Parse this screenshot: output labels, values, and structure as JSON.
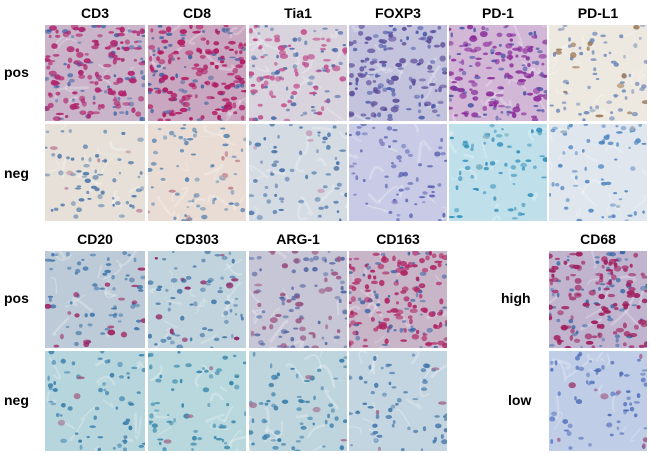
{
  "top_panel": {
    "columns": [
      "CD3",
      "CD8",
      "Tia1",
      "FOXP3",
      "PD-1",
      "PD-L1"
    ],
    "rows": [
      "pos",
      "neg"
    ]
  },
  "bottom_panel": {
    "columns": [
      "CD20",
      "CD303",
      "ARG-1",
      "CD163"
    ],
    "rows": [
      "pos",
      "neg"
    ]
  },
  "cd68_panel": {
    "column": "CD68",
    "rows": [
      "high",
      "low"
    ]
  },
  "tiles": [
    {
      "id": "cd3-pos",
      "bg": "#c9b4c9",
      "stain": "#b0256e",
      "cell": "#3d62a8",
      "density": 0.85
    },
    {
      "id": "cd8-pos",
      "bg": "#c9a7c0",
      "stain": "#b01a62",
      "cell": "#3a5ea0",
      "density": 0.9
    },
    {
      "id": "tia1-pos",
      "bg": "#d9d3dd",
      "stain": "#c04a8a",
      "cell": "#4a6aa8",
      "density": 0.45
    },
    {
      "id": "foxp3-pos",
      "bg": "#c3c3dd",
      "stain": "#5d4d9a",
      "cell": "#4a5aa8",
      "density": 0.55
    },
    {
      "id": "pd1-pos",
      "bg": "#d2b7d7",
      "stain": "#8a2d9a",
      "cell": "#4a55a8",
      "density": 0.75
    },
    {
      "id": "pdl1-pos",
      "bg": "#ede8e0",
      "stain": "#9c7a5a",
      "cell": "#6a86b8",
      "density": 0.1
    },
    {
      "id": "cd3-neg",
      "bg": "#e6e0d8",
      "stain": "#c08aa0",
      "cell": "#4a75a8",
      "density": 0.04
    },
    {
      "id": "cd8-neg",
      "bg": "#e8dcd4",
      "stain": "#c08090",
      "cell": "#5080b0",
      "density": 0.06
    },
    {
      "id": "tia1-neg",
      "bg": "#d4dbe3",
      "stain": "#c090b0",
      "cell": "#3f6ca5",
      "density": 0.03
    },
    {
      "id": "foxp3-neg",
      "bg": "#c9cbe6",
      "stain": "#8a80c0",
      "cell": "#5560b0",
      "density": 0.02
    },
    {
      "id": "pd1-neg",
      "bg": "#bfe0ea",
      "stain": "#80b0c0",
      "cell": "#2a8ab8",
      "density": 0.02
    },
    {
      "id": "pdl1-neg",
      "bg": "#dfe6ee",
      "stain": "#a0b0c0",
      "cell": "#4a82c0",
      "density": 0.02
    },
    {
      "id": "cd20-pos",
      "bg": "#bccbd7",
      "stain": "#a02060",
      "cell": "#3a70a8",
      "density": 0.12
    },
    {
      "id": "cd303-pos",
      "bg": "#c1d3dd",
      "stain": "#902060",
      "cell": "#4075a8",
      "density": 0.08
    },
    {
      "id": "arg1-pos",
      "bg": "#c7c6d6",
      "stain": "#9a5080",
      "cell": "#4a62a0",
      "density": 0.25
    },
    {
      "id": "cd163-pos",
      "bg": "#c8b5c8",
      "stain": "#b02464",
      "cell": "#3a64a8",
      "density": 0.8
    },
    {
      "id": "cd20-neg",
      "bg": "#b7d5dd",
      "stain": "#a06080",
      "cell": "#2f78a8",
      "density": 0.02
    },
    {
      "id": "cd303-neg",
      "bg": "#b8d8dd",
      "stain": "#a07090",
      "cell": "#2f80a8",
      "density": 0.02
    },
    {
      "id": "arg1-neg",
      "bg": "#bed5dd",
      "stain": "#a07090",
      "cell": "#3078a8",
      "density": 0.03
    },
    {
      "id": "cd163-neg",
      "bg": "#c3d5e0",
      "stain": "#a07090",
      "cell": "#3f74a8",
      "density": 0.03
    },
    {
      "id": "cd68-high",
      "bg": "#c0b4cf",
      "stain": "#a01e5e",
      "cell": "#3a68a8",
      "density": 0.8
    },
    {
      "id": "cd68-low",
      "bg": "#c0cde6",
      "stain": "#a04878",
      "cell": "#4a6ab8",
      "density": 0.06
    }
  ]
}
